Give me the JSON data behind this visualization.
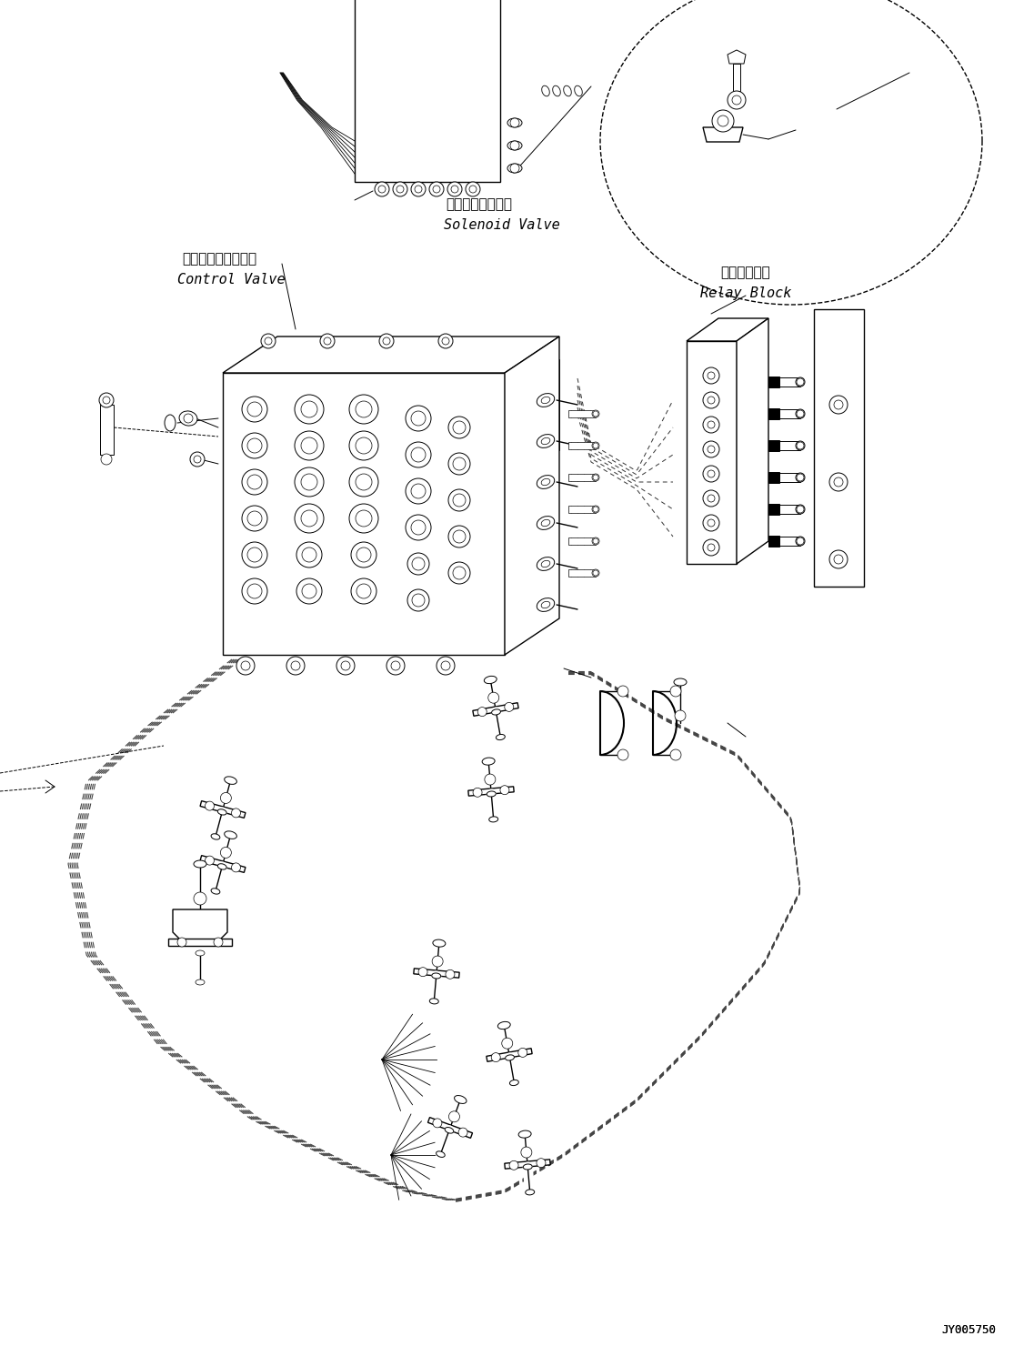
{
  "bg_color": "#ffffff",
  "line_color": "#000000",
  "label_solenoid_jp": "ソレノイドバルブ",
  "label_solenoid_en": "Solenoid Valve",
  "label_control_jp": "コントロールバルブ",
  "label_control_en": "Control Valve",
  "label_relay_jp": "中継ブロック",
  "label_relay_en": "Relay Block",
  "part_number": "JY005750",
  "figsize": [
    11.37,
    14.91
  ],
  "dpi": 100
}
